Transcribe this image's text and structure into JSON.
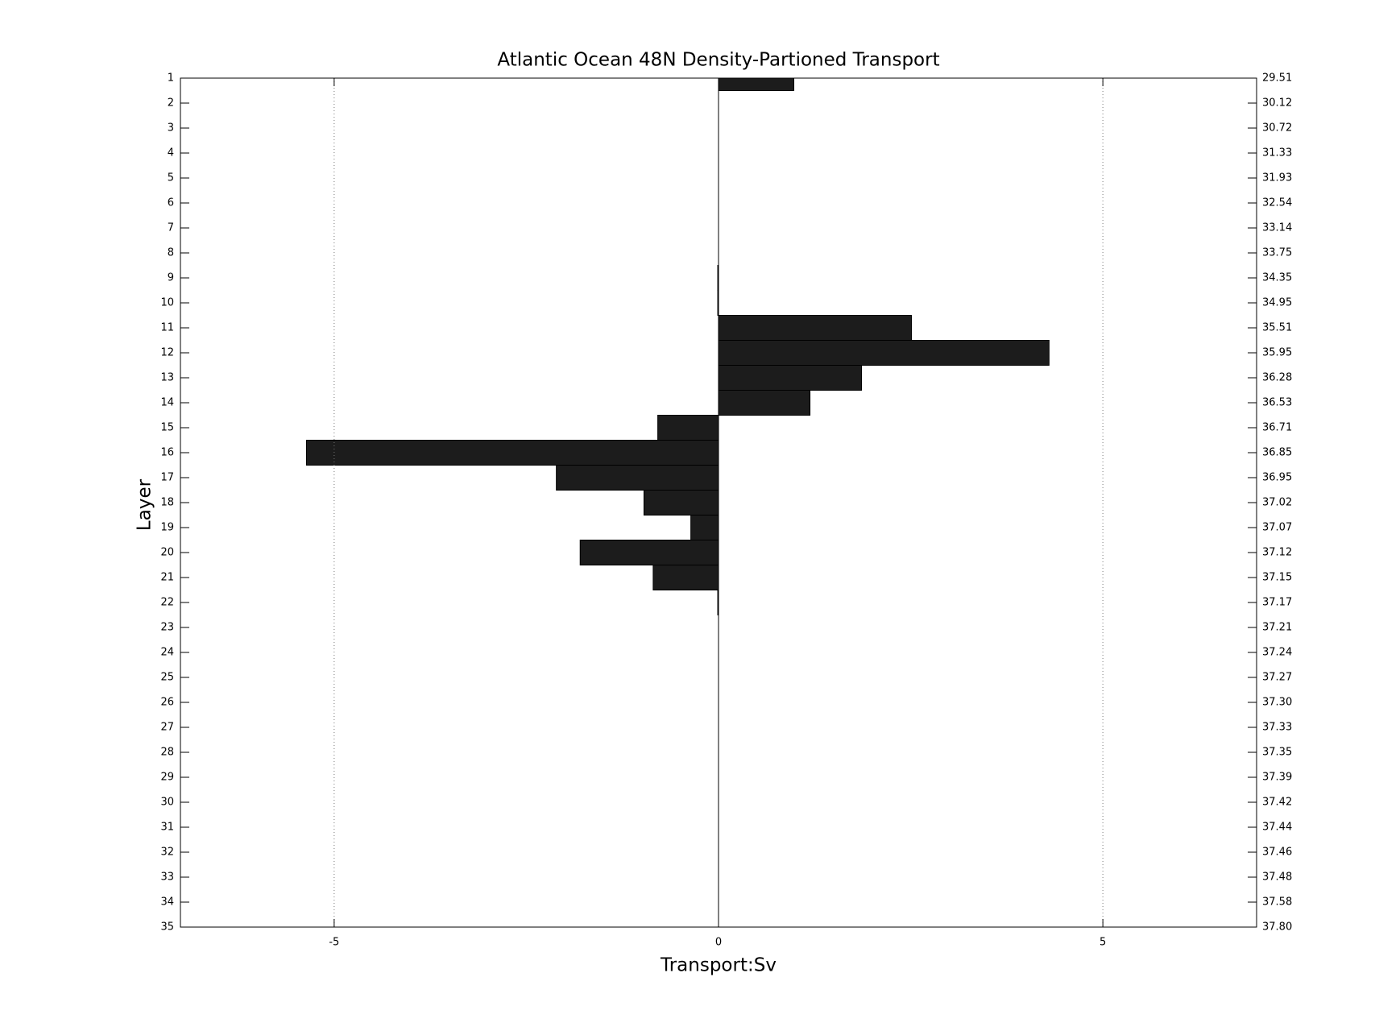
{
  "chart_data": {
    "type": "barh",
    "title": "Atlantic Ocean 48N Density-Partioned Transport",
    "xlabel": "Transport:Sv",
    "ylabel": "Layer",
    "color": "#1c1c1c",
    "y": [
      1,
      2,
      3,
      4,
      5,
      6,
      7,
      8,
      9,
      10,
      11,
      12,
      13,
      14,
      15,
      16,
      17,
      18,
      19,
      20,
      21,
      22,
      23,
      24,
      25,
      26,
      27,
      28,
      29,
      30,
      31,
      32,
      33,
      34,
      35
    ],
    "values": [
      0.98,
      0,
      0,
      0,
      0,
      0,
      0,
      0,
      -0.01,
      -0.01,
      2.51,
      4.3,
      1.86,
      1.19,
      -0.79,
      -5.36,
      -2.11,
      -0.97,
      -0.36,
      -1.8,
      -0.85,
      -0.01,
      0,
      0,
      0,
      0,
      0,
      0,
      0,
      0,
      0,
      0,
      0,
      0,
      0
    ],
    "xlim": [
      -7,
      7
    ],
    "xticks": [
      -5,
      0,
      5
    ],
    "ylim": [
      1,
      35
    ],
    "yticks": [
      1,
      2,
      3,
      4,
      5,
      6,
      7,
      8,
      9,
      10,
      11,
      12,
      13,
      14,
      15,
      16,
      17,
      18,
      19,
      20,
      21,
      22,
      23,
      24,
      25,
      26,
      27,
      28,
      29,
      30,
      31,
      32,
      33,
      34,
      35
    ],
    "y2ticks": [
      {
        "value": 1,
        "label": "29.51"
      },
      {
        "value": 2,
        "label": "30.12"
      },
      {
        "value": 3,
        "label": "30.72"
      },
      {
        "value": 4,
        "label": "31.33"
      },
      {
        "value": 5,
        "label": "31.93"
      },
      {
        "value": 6,
        "label": "32.54"
      },
      {
        "value": 7,
        "label": "33.14"
      },
      {
        "value": 8,
        "label": "33.75"
      },
      {
        "value": 9,
        "label": "34.35"
      },
      {
        "value": 10,
        "label": "34.95"
      },
      {
        "value": 11,
        "label": "35.51"
      },
      {
        "value": 12,
        "label": "35.95"
      },
      {
        "value": 13,
        "label": "36.28"
      },
      {
        "value": 14,
        "label": "36.53"
      },
      {
        "value": 15,
        "label": "36.71"
      },
      {
        "value": 16,
        "label": "36.85"
      },
      {
        "value": 17,
        "label": "36.95"
      },
      {
        "value": 18,
        "label": "37.02"
      },
      {
        "value": 19,
        "label": "37.07"
      },
      {
        "value": 20,
        "label": "37.12"
      },
      {
        "value": 21,
        "label": "37.15"
      },
      {
        "value": 22,
        "label": "37.17"
      },
      {
        "value": 23,
        "label": "37.21"
      },
      {
        "value": 24,
        "label": "37.24"
      },
      {
        "value": 25,
        "label": "37.27"
      },
      {
        "value": 26,
        "label": "37.30"
      },
      {
        "value": 27,
        "label": "37.33"
      },
      {
        "value": 28,
        "label": "37.35"
      },
      {
        "value": 29,
        "label": "37.39"
      },
      {
        "value": 30,
        "label": "37.42"
      },
      {
        "value": 31,
        "label": "37.44"
      },
      {
        "value": 32,
        "label": "37.46"
      },
      {
        "value": 33,
        "label": "37.48"
      },
      {
        "value": 34,
        "label": "37.58"
      },
      {
        "value": 35,
        "label": "37.80"
      }
    ],
    "grid": true
  }
}
